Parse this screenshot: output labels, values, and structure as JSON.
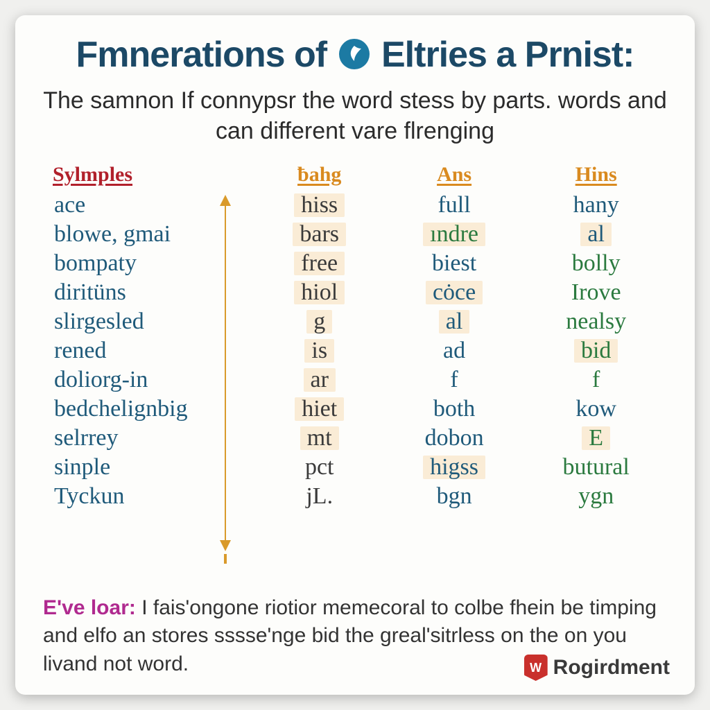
{
  "title_left": "Fmnerations of",
  "title_right": "Eltries a Prnist:",
  "subtitle": "The samnon If connypsr the word stess by parts. words and can different vare flrenging",
  "colors": {
    "title": "#1c4966",
    "subtitle": "#2b2b2b",
    "header_red": "#b1202b",
    "header_orange": "#d98a1f",
    "col1_text": "#1f5a7a",
    "col2_text": "#3a3a3a",
    "col3_blue": "#1f5a7a",
    "col3_green": "#2b7a3f",
    "col4_blue": "#1f5a7a",
    "col4_green": "#2b7a3f",
    "highlight_bg": "#faecd6",
    "arrow": "#d99a2b",
    "footer_lead": "#b02a8f",
    "brand_badge": "#c9302c",
    "card_bg": "#fdfdfb"
  },
  "typography": {
    "title_fontsize": 52,
    "subtitle_fontsize": 34,
    "header_fontsize": 30,
    "cell_fontsize": 34,
    "footer_fontsize": 30
  },
  "headers": [
    "Sylmples",
    "ƀahg",
    "Ans",
    "Hins"
  ],
  "header_colors": [
    "header_red",
    "header_orange",
    "header_orange",
    "header_orange"
  ],
  "rows": [
    {
      "c1": "ace",
      "c2": {
        "t": "hiss",
        "hl": true
      },
      "c3": {
        "t": "full",
        "c": "col3_blue",
        "hl": false
      },
      "c4": {
        "t": "hany",
        "c": "col4_blue",
        "hl": false
      }
    },
    {
      "c1": "blowe, gmai",
      "c2": {
        "t": "bars",
        "hl": true
      },
      "c3": {
        "t": "ındre",
        "c": "col3_green",
        "hl": true
      },
      "c4": {
        "t": "al",
        "c": "col4_blue",
        "hl": true
      }
    },
    {
      "c1": "bompaty",
      "c2": {
        "t": "free",
        "hl": true
      },
      "c3": {
        "t": "biest",
        "c": "col3_blue",
        "hl": false
      },
      "c4": {
        "t": "bolly",
        "c": "col4_green",
        "hl": false
      }
    },
    {
      "c1": "diritüns",
      "c2": {
        "t": "hiol",
        "hl": true
      },
      "c3": {
        "t": "cȯce",
        "c": "col3_blue",
        "hl": true
      },
      "c4": {
        "t": "Irove",
        "c": "col4_green",
        "hl": false
      }
    },
    {
      "c1": "slirgesled",
      "c2": {
        "t": "g",
        "hl": true
      },
      "c3": {
        "t": "al",
        "c": "col3_blue",
        "hl": true
      },
      "c4": {
        "t": "nealsy",
        "c": "col4_green",
        "hl": false
      }
    },
    {
      "c1": "rened",
      "c2": {
        "t": "is",
        "hl": true
      },
      "c3": {
        "t": "ad",
        "c": "col3_blue",
        "hl": false
      },
      "c4": {
        "t": "bid",
        "c": "col4_green",
        "hl": true
      }
    },
    {
      "c1": "doliorg-in",
      "c2": {
        "t": "ar",
        "hl": true
      },
      "c3": {
        "t": "f",
        "c": "col3_blue",
        "hl": false
      },
      "c4": {
        "t": "f",
        "c": "col4_green",
        "hl": false
      }
    },
    {
      "c1": "bedchelignbig",
      "c2": {
        "t": "hiet",
        "hl": true
      },
      "c3": {
        "t": "both",
        "c": "col3_blue",
        "hl": false
      },
      "c4": {
        "t": "kow",
        "c": "col4_blue",
        "hl": false
      }
    },
    {
      "c1": "selrrey",
      "c2": {
        "t": "mt",
        "hl": true
      },
      "c3": {
        "t": "dobon",
        "c": "col3_blue",
        "hl": false
      },
      "c4": {
        "t": "E",
        "c": "col4_green",
        "hl": true
      }
    },
    {
      "c1": "sinple",
      "c2": {
        "t": "pct",
        "hl": false
      },
      "c3": {
        "t": "higss",
        "c": "col3_blue",
        "hl": true
      },
      "c4": {
        "t": "butural",
        "c": "col4_green",
        "hl": false
      }
    },
    {
      "c1": "Tyckun",
      "c2": {
        "t": "jL.",
        "hl": false
      },
      "c3": {
        "t": "bgn",
        "c": "col3_blue",
        "hl": false
      },
      "c4": {
        "t": "ygn",
        "c": "col4_green",
        "hl": false
      }
    }
  ],
  "footer": {
    "lead": "E've loar:",
    "body": " I fais'ongone riotior memecoral to colbe fhein be timping and elfo an stores sssse'nge bid the greal'sitrless on the on you livand not word."
  },
  "brand": {
    "badge_letter": "W",
    "name": "Rogirdment"
  }
}
